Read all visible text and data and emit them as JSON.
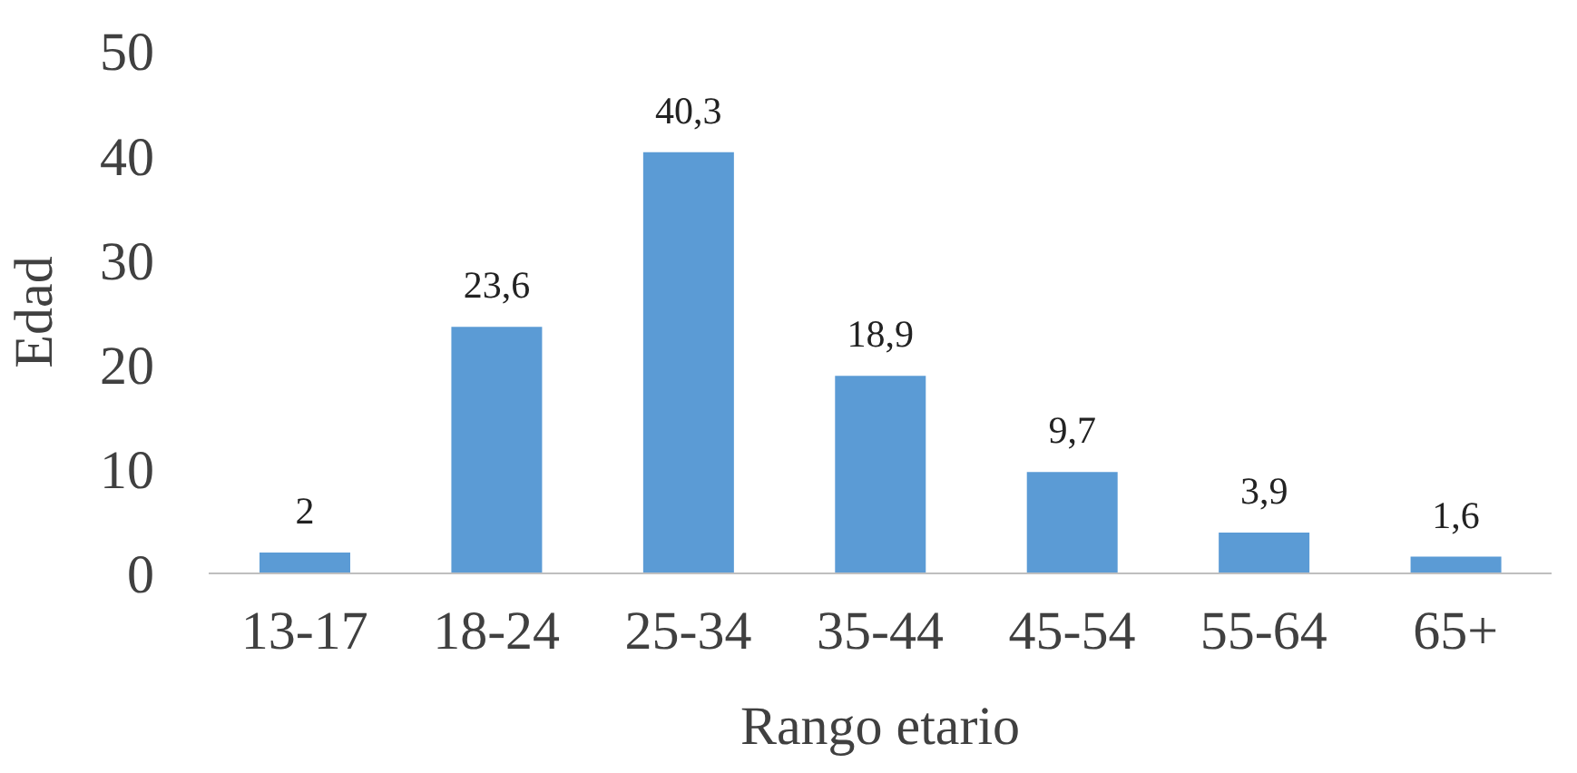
{
  "chart_data": {
    "type": "bar",
    "xlabel": "Rango etario",
    "ylabel": "Edad",
    "categories": [
      "13-17",
      "18-24",
      "25-34",
      "35-44",
      "45-54",
      "55-64",
      "65+"
    ],
    "values": [
      2,
      23.6,
      40.3,
      18.9,
      9.7,
      3.9,
      1.6
    ],
    "value_labels": [
      "2",
      "23,6",
      "40,3",
      "18,9",
      "9,7",
      "3,9",
      "1,6"
    ],
    "color": "#5b9bd5",
    "ylim": [
      0,
      50
    ],
    "yticks": [
      0,
      10,
      20,
      30,
      40,
      50
    ],
    "grid": false,
    "legend": false
  }
}
